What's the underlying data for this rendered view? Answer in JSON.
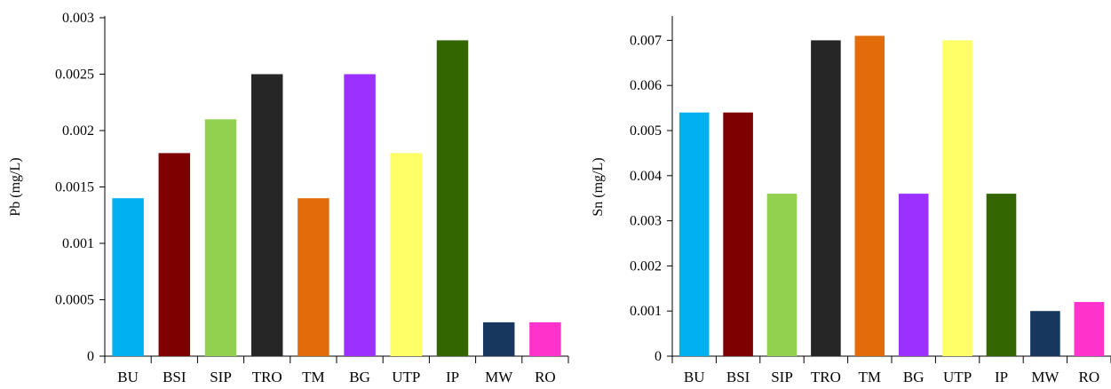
{
  "chart_data": [
    {
      "type": "bar",
      "ylabel": "Pb (mg/L)",
      "xlabel": "",
      "categories": [
        "BU",
        "BSI",
        "SIP",
        "TRO",
        "TM",
        "BG",
        "UTP",
        "IP",
        "MW",
        "RO"
      ],
      "values": [
        0.0014,
        0.0018,
        0.0021,
        0.0025,
        0.0014,
        0.0025,
        0.0018,
        0.0028,
        0.0003,
        0.0003
      ],
      "colors": [
        "#00b0f0",
        "#7f0000",
        "#92d050",
        "#262626",
        "#e36c0a",
        "#9b30ff",
        "#ffff66",
        "#336600",
        "#17375e",
        "#ff33cc"
      ],
      "ylim": [
        0,
        0.003
      ],
      "yticks": [
        "0",
        "0.0005",
        "0.001",
        "0.0015",
        "0.002",
        "0.0025",
        "0.003"
      ],
      "grid": false,
      "legend": "none"
    },
    {
      "type": "bar",
      "ylabel": "Sn (mg/L)",
      "xlabel": "",
      "categories": [
        "BU",
        "BSI",
        "SIP",
        "TRO",
        "TM",
        "BG",
        "UTP",
        "IP",
        "MW",
        "RO"
      ],
      "values": [
        0.0054,
        0.0054,
        0.0036,
        0.007,
        0.0071,
        0.0036,
        0.007,
        0.0036,
        0.001,
        0.0012
      ],
      "colors": [
        "#00b0f0",
        "#7f0000",
        "#92d050",
        "#262626",
        "#e36c0a",
        "#9b30ff",
        "#ffff66",
        "#336600",
        "#17375e",
        "#ff33cc"
      ],
      "ylim": [
        0,
        0.0075
      ],
      "yticks": [
        "0",
        "0.001",
        "0.002",
        "0.003",
        "0.004",
        "0.005",
        "0.006",
        "0.007"
      ],
      "grid": false,
      "legend": "none"
    }
  ]
}
